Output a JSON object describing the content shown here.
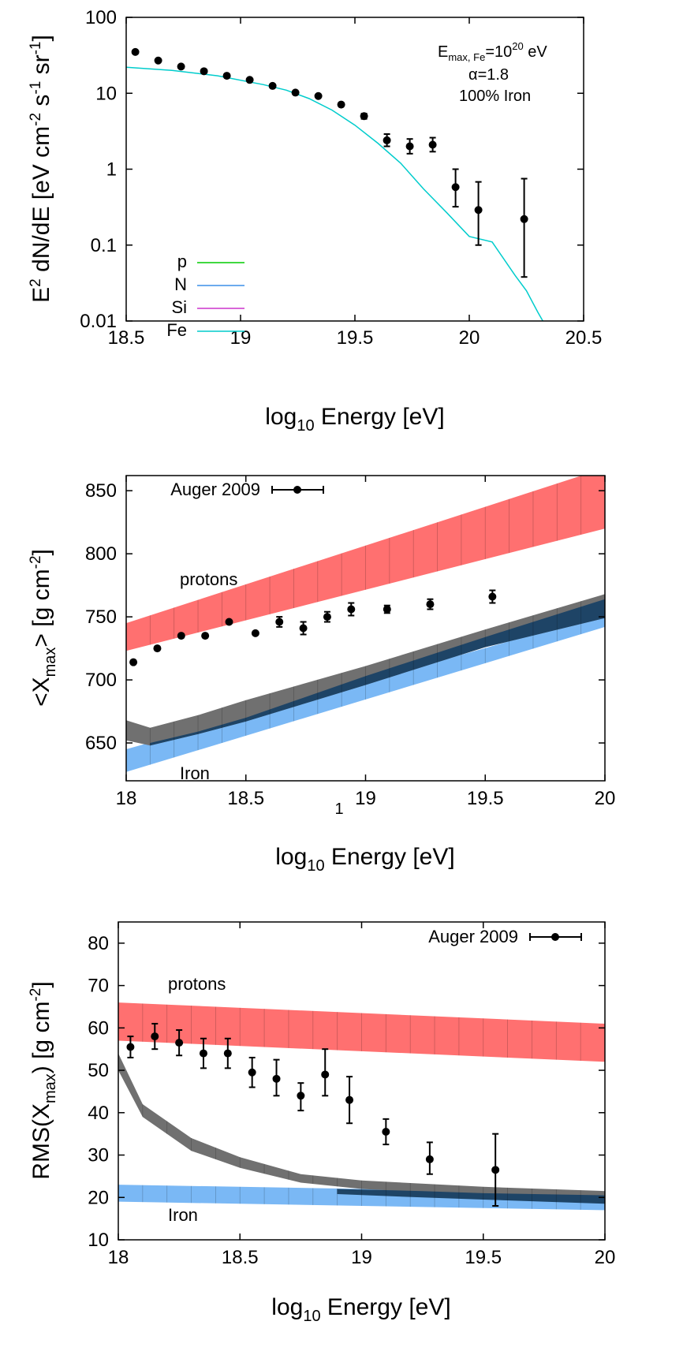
{
  "page_marker": "1",
  "chart_data": [
    {
      "type": "line",
      "ylabel_parts": {
        "base": "E",
        "exp": "2",
        "tail": " dN/dE [eV cm",
        "exp2": "-2",
        "mid": " s",
        "exp3": "-1",
        "mid2": " sr",
        "exp4": "-1",
        "end": "]"
      },
      "xlabel_parts": {
        "base": "log",
        "sub": "10",
        "rest": " Energy [eV]"
      },
      "xlim": [
        18.5,
        20.5
      ],
      "ylim": [
        0.01,
        100
      ],
      "yscale": "log",
      "xticks": [
        "18.5",
        "19",
        "19.5",
        "20",
        "20.5"
      ],
      "yticks": [
        "0.01",
        "0.1",
        "1",
        "10",
        "100"
      ],
      "annotations": {
        "emax_base": "E",
        "emax_sub": "max, Fe",
        "emax_eq": "=10",
        "emax_exp": "20",
        "emax_unit": " eV",
        "alpha": "α=1.8",
        "composition": "100% Iron"
      },
      "legend": [
        {
          "name": "p",
          "color": "#00cc00"
        },
        {
          "name": "N",
          "color": "#3b8fe8"
        },
        {
          "name": "Si",
          "color": "#cc33cc"
        },
        {
          "name": "Fe",
          "color": "#00cccc"
        }
      ],
      "series": [
        {
          "name": "Fe",
          "color": "#00cccc",
          "x": [
            18.5,
            18.7,
            18.9,
            19.1,
            19.2,
            19.3,
            19.4,
            19.5,
            19.6,
            19.7,
            19.8,
            19.9,
            20.0,
            20.1,
            20.2,
            20.25,
            20.3,
            20.34
          ],
          "y": [
            22,
            20,
            17,
            13,
            11,
            8.5,
            6,
            3.8,
            2.2,
            1.2,
            0.55,
            0.27,
            0.13,
            0.11,
            0.04,
            0.025,
            0.013,
            0.008
          ]
        }
      ],
      "points": {
        "x": [
          18.54,
          18.64,
          18.74,
          18.84,
          18.94,
          19.04,
          19.14,
          19.24,
          19.34,
          19.44,
          19.54,
          19.64,
          19.74,
          19.84,
          19.94,
          20.04,
          20.24
        ],
        "y": [
          35,
          27,
          22.5,
          19.5,
          17,
          15,
          12.5,
          10.2,
          9.2,
          7.1,
          5,
          2.4,
          2,
          2.1,
          0.58,
          0.29,
          0.22
        ],
        "ylo": [
          35,
          27,
          22.5,
          19.5,
          17,
          15,
          12.5,
          10.2,
          9.2,
          7.1,
          4.6,
          2.0,
          1.6,
          1.7,
          0.32,
          0.1,
          0.038
        ],
        "yhi": [
          35,
          27,
          22.5,
          19.5,
          17,
          15,
          12.5,
          10.2,
          9.2,
          7.1,
          5.4,
          2.9,
          2.5,
          2.6,
          1.0,
          0.68,
          0.75
        ]
      }
    },
    {
      "type": "scatter",
      "ylabel_parts": {
        "pre": "<X",
        "sub": "max",
        "post": "> [g cm",
        "exp": "-2",
        "end": "]"
      },
      "xlabel_parts": {
        "base": "log",
        "sub": "10",
        "rest": " Energy [eV]"
      },
      "xlim": [
        18,
        20
      ],
      "ylim": [
        620,
        862
      ],
      "xticks": [
        "18",
        "18.5",
        "19",
        "19.5",
        "20"
      ],
      "yticks": [
        "650",
        "700",
        "750",
        "800",
        "850"
      ],
      "legend": [
        {
          "name": "Auger 2009"
        }
      ],
      "bands": [
        {
          "name": "protons",
          "color": "#ff7070",
          "x": [
            18,
            20
          ],
          "lo": [
            723,
            820
          ],
          "hi": [
            745,
            868
          ]
        },
        {
          "name": "Iron",
          "color": "#7ab8f5",
          "x": [
            18,
            20
          ],
          "lo": [
            627,
            742
          ],
          "hi": [
            645,
            752
          ]
        },
        {
          "name": "",
          "color": "#707070",
          "x": [
            18,
            18.1,
            18.3,
            18.5,
            19,
            19.5,
            20
          ],
          "lo": [
            652,
            648,
            657,
            667,
            696,
            726,
            749
          ],
          "hi": [
            668,
            662,
            672,
            684,
            711,
            740,
            768
          ]
        },
        {
          "name": "",
          "color": "#1e4466",
          "x": [
            18.1,
            18.3,
            18.5,
            19,
            19.5,
            20
          ],
          "lo": [
            648,
            657,
            667,
            696,
            726,
            749
          ],
          "hi": [
            650,
            659,
            670,
            703,
            734,
            764
          ]
        }
      ],
      "points": {
        "x": [
          18.03,
          18.13,
          18.23,
          18.33,
          18.43,
          18.54,
          18.64,
          18.74,
          18.84,
          18.94,
          19.09,
          19.27,
          19.53
        ],
        "y": [
          714,
          725,
          735,
          735,
          746,
          737,
          746,
          741,
          750,
          756,
          756,
          760,
          766
        ],
        "err": [
          0,
          0,
          0,
          0,
          0,
          0,
          4,
          5,
          4,
          5,
          3,
          4,
          5
        ]
      }
    },
    {
      "type": "scatter",
      "ylabel_parts": {
        "pre": "RMS(X",
        "sub": "max",
        "post": ") [g cm",
        "exp": "-2",
        "end": "]"
      },
      "xlabel_parts": {
        "base": "log",
        "sub": "10",
        "rest": " Energy [eV]"
      },
      "xlim": [
        18,
        20
      ],
      "ylim": [
        10,
        85
      ],
      "xticks": [
        "18",
        "18.5",
        "19",
        "19.5",
        "20"
      ],
      "yticks": [
        "10",
        "20",
        "30",
        "40",
        "50",
        "60",
        "70",
        "80"
      ],
      "legend": [
        {
          "name": "Auger 2009"
        }
      ],
      "bands": [
        {
          "name": "protons",
          "color": "#ff7070",
          "x": [
            18,
            20
          ],
          "lo": [
            57,
            52
          ],
          "hi": [
            66,
            61
          ]
        },
        {
          "name": "Iron",
          "color": "#7ab8f5",
          "x": [
            18,
            20
          ],
          "lo": [
            19,
            17
          ],
          "hi": [
            23,
            21
          ]
        },
        {
          "name": "",
          "color": "#707070",
          "x": [
            18,
            18.1,
            18.3,
            18.5,
            18.75,
            19,
            19.5,
            20
          ],
          "lo": [
            50,
            39,
            31,
            27,
            23.5,
            22,
            20.5,
            19.5
          ],
          "hi": [
            54,
            42,
            34,
            29.5,
            25.5,
            24,
            22.5,
            21.5
          ]
        },
        {
          "name": "",
          "color": "#1e4466",
          "x": [
            18.9,
            19.25,
            19.5,
            20
          ],
          "lo": [
            20.8,
            20,
            19.5,
            18.5
          ],
          "hi": [
            22,
            21.5,
            21,
            20.5
          ]
        }
      ],
      "points": {
        "x": [
          18.05,
          18.15,
          18.25,
          18.35,
          18.45,
          18.55,
          18.65,
          18.75,
          18.85,
          18.95,
          19.1,
          19.28,
          19.55
        ],
        "y": [
          55.5,
          58,
          56.5,
          54,
          54,
          49.5,
          48,
          44,
          49,
          43,
          35.5,
          29,
          26.5
        ],
        "ylo": [
          53,
          55,
          53.5,
          50.5,
          50.5,
          46,
          44,
          40.5,
          44,
          37.5,
          32.5,
          25.5,
          18
        ],
        "yhi": [
          58,
          61,
          59.5,
          57.5,
          57.5,
          53,
          52.5,
          47,
          55,
          48.5,
          38.5,
          33,
          35
        ]
      }
    }
  ]
}
